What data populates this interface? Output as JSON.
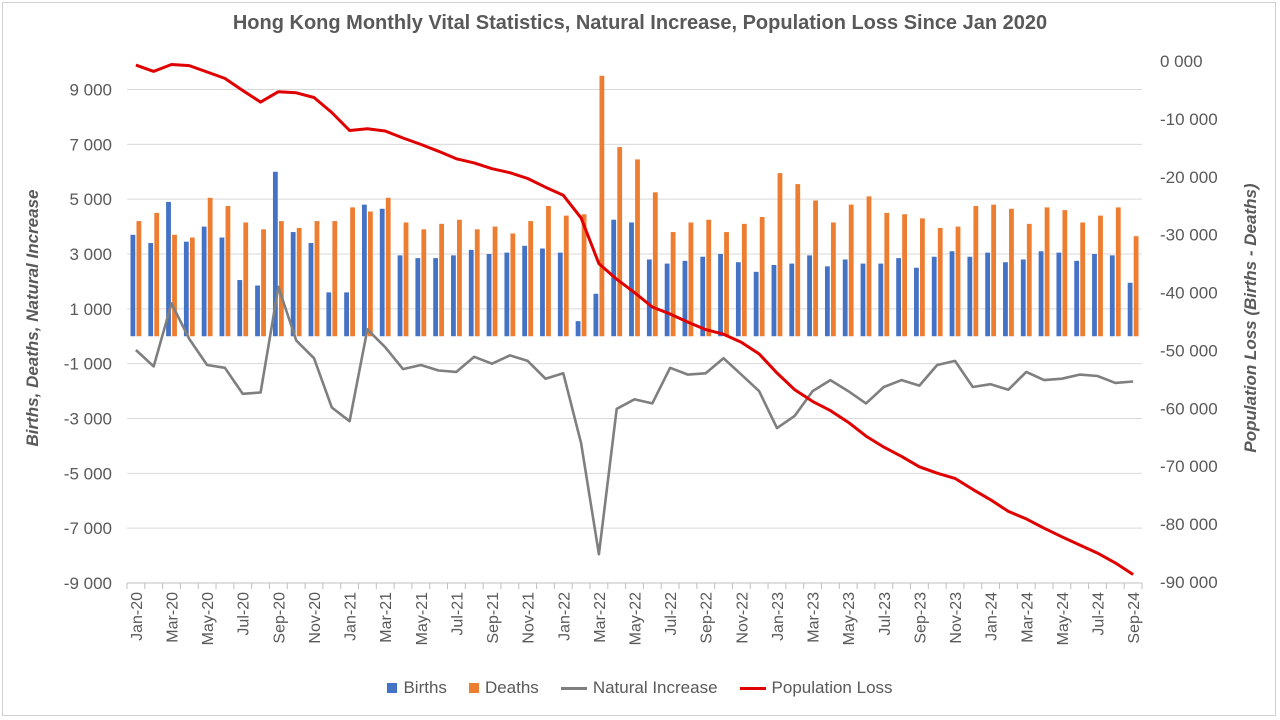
{
  "chart_data": {
    "type": "bar",
    "title": "Hong Kong Monthly Vital Statistics, Natural Increase, Population Loss Since Jan 2020",
    "ylabel_left": "Births,  Deaths,  Natural Increase",
    "ylabel_right": "Population Loss (Births - Deaths)",
    "ylim_left": [
      -9000,
      10000
    ],
    "ylim_right": [
      -90000,
      0
    ],
    "yticks_left": [
      "9 000",
      "7 000",
      "5 000",
      "3 000",
      "1 000",
      "-1 000",
      "-3 000",
      "-5 000",
      "-7 000",
      "-9 000"
    ],
    "yticks_left_values": [
      9000,
      7000,
      5000,
      3000,
      1000,
      -1000,
      -3000,
      -5000,
      -7000,
      -9000
    ],
    "yticks_right": [
      "0 000",
      "-10 000",
      "-20 000",
      "-30 000",
      "-40 000",
      "-50 000",
      "-60 000",
      "-70 000",
      "-80 000",
      "-90 000"
    ],
    "yticks_right_values": [
      0,
      -10000,
      -20000,
      -30000,
      -40000,
      -50000,
      -60000,
      -70000,
      -80000,
      -90000
    ],
    "categories": [
      "Jan-20",
      "Feb-20",
      "Mar-20",
      "Apr-20",
      "May-20",
      "Jun-20",
      "Jul-20",
      "Aug-20",
      "Sep-20",
      "Oct-20",
      "Nov-20",
      "Dec-20",
      "Jan-21",
      "Feb-21",
      "Mar-21",
      "Apr-21",
      "May-21",
      "Jun-21",
      "Jul-21",
      "Aug-21",
      "Sep-21",
      "Oct-21",
      "Nov-21",
      "Dec-21",
      "Jan-22",
      "Feb-22",
      "Mar-22",
      "Apr-22",
      "May-22",
      "Jun-22",
      "Jul-22",
      "Aug-22",
      "Sep-22",
      "Oct-22",
      "Nov-22",
      "Dec-22",
      "Jan-23",
      "Feb-23",
      "Mar-23",
      "Apr-23",
      "May-23",
      "Jun-23",
      "Jul-23",
      "Aug-23",
      "Sep-23",
      "Oct-23",
      "Nov-23",
      "Dec-23",
      "Jan-24",
      "Feb-24",
      "Mar-24",
      "Apr-24",
      "May-24",
      "Jun-24",
      "Jul-24",
      "Aug-24",
      "Sep-24"
    ],
    "tick_labels": [
      "Jan-20",
      "Mar-20",
      "May-20",
      "Jul-20",
      "Sep-20",
      "Nov-20",
      "Jan-21",
      "Mar-21",
      "May-21",
      "Jul-21",
      "Sep-21",
      "Nov-21",
      "Jan-22",
      "Mar-22",
      "May-22",
      "Jul-22",
      "Sep-22",
      "Nov-22",
      "Jan-23",
      "Mar-23",
      "May-23",
      "Jul-23",
      "Sep-23",
      "Nov-23",
      "Jan-24",
      "Mar-24",
      "May-24",
      "Jul-24",
      "Sep-24"
    ],
    "series": [
      {
        "name": "Births",
        "type": "bar",
        "axis": "left",
        "color": "#4472C4",
        "values": [
          3700,
          3400,
          4900,
          3450,
          4000,
          3600,
          2050,
          1850,
          6000,
          3800,
          3400,
          1600,
          1600,
          4800,
          4650,
          2950,
          2850,
          2850,
          2950,
          3150,
          3000,
          3050,
          3300,
          3200,
          3050,
          550,
          1550,
          4250,
          4150,
          2800,
          2650,
          2750,
          2900,
          3000,
          2700,
          2350,
          2600,
          2650,
          2950,
          2550,
          2800,
          2650,
          2650,
          2850,
          2500,
          2900,
          3100,
          2900,
          3050,
          2700,
          2800,
          3100,
          3050,
          2750,
          3000,
          2950,
          1950
        ]
      },
      {
        "name": "Deaths",
        "type": "bar",
        "axis": "left",
        "color": "#ED7D31",
        "values": [
          4200,
          4500,
          3700,
          3600,
          5050,
          4750,
          4150,
          3900,
          4200,
          3950,
          4200,
          4200,
          4700,
          4550,
          5050,
          4150,
          3900,
          4100,
          4250,
          3900,
          4000,
          3750,
          4200,
          4750,
          4400,
          4450,
          9500,
          6900,
          6450,
          5250,
          3800,
          4150,
          4250,
          3800,
          4100,
          4350,
          5950,
          5550,
          4950,
          4150,
          4800,
          5100,
          4500,
          4450,
          4300,
          3950,
          4000,
          4750,
          4800,
          4650,
          4100,
          4700,
          4600,
          4150,
          4400,
          4700,
          3650
        ]
      },
      {
        "name": "Natural Increase",
        "type": "line",
        "axis": "left",
        "color": "#7F7F7F",
        "values": [
          -500,
          -1100,
          1200,
          -100,
          -1050,
          -1150,
          -2100,
          -2050,
          1800,
          -150,
          -800,
          -2600,
          -3100,
          250,
          -400,
          -1200,
          -1050,
          -1250,
          -1300,
          -750,
          -1000,
          -700,
          -900,
          -1550,
          -1350,
          -3900,
          -7950,
          -2650,
          -2300,
          -2450,
          -1150,
          -1400,
          -1350,
          -800,
          -1400,
          -2000,
          -3350,
          -2900,
          -2000,
          -1600,
          -2000,
          -2450,
          -1850,
          -1600,
          -1800,
          -1050,
          -900,
          -1850,
          -1750,
          -1950,
          -1300,
          -1600,
          -1550,
          -1400,
          -1450,
          -1700,
          -1650
        ]
      },
      {
        "name": "Population Loss",
        "type": "line",
        "axis": "right",
        "color": "#E00000",
        "values": [
          -700,
          -1800,
          -600,
          -800,
          -1900,
          -3000,
          -5100,
          -7100,
          -5300,
          -5500,
          -6300,
          -8900,
          -12000,
          -11700,
          -12100,
          -13300,
          -14400,
          -15600,
          -16900,
          -17600,
          -18600,
          -19300,
          -20300,
          -21800,
          -23200,
          -27100,
          -35000,
          -37700,
          -40000,
          -42500,
          -43700,
          -45100,
          -46400,
          -47200,
          -48600,
          -50600,
          -53900,
          -56800,
          -58800,
          -60400,
          -62400,
          -64800,
          -66700,
          -68300,
          -70100,
          -71200,
          -72100,
          -74000,
          -75800,
          -77800,
          -79100,
          -80700,
          -82200,
          -83600,
          -85000,
          -86700,
          -88700
        ]
      }
    ]
  }
}
